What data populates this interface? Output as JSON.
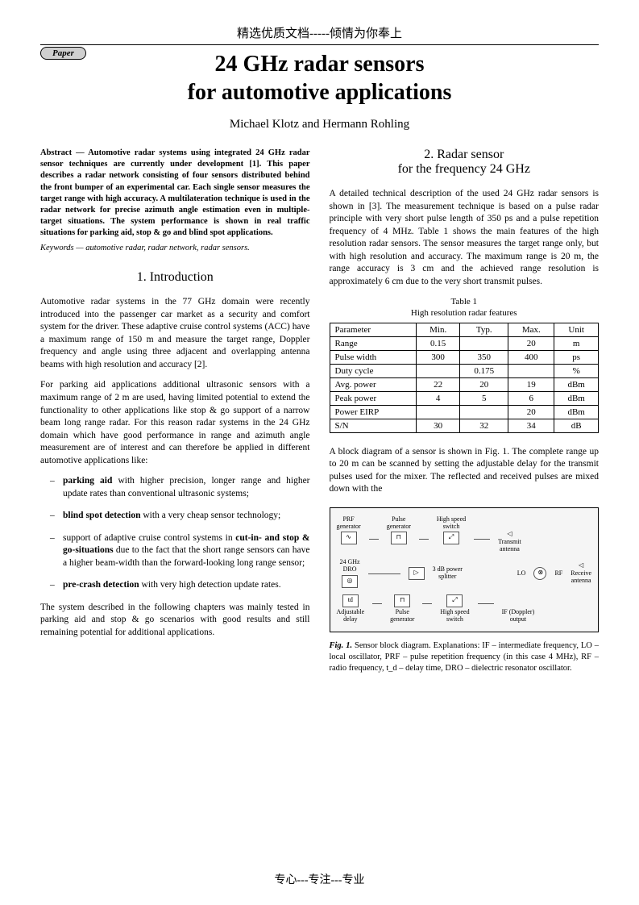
{
  "header_cn": "精选优质文档-----倾情为你奉上",
  "badge": "Paper",
  "title_line1": "24 GHz radar sensors",
  "title_line2": "for automotive applications",
  "authors": "Michael Klotz and Hermann Rohling",
  "abstract": "Abstract — Automotive radar systems using integrated 24 GHz radar sensor techniques are currently under development [1]. This paper describes a radar network consisting of four sensors distributed behind the front bumper of an experimental car. Each single sensor measures the target range with high accuracy. A multilateration technique is used in the radar network for precise azimuth angle estimation even in multiple-target situations. The system performance is shown in real traffic situations for parking aid, stop & go and blind spot applications.",
  "keywords": "Keywords — automotive radar, radar network, radar sensors.",
  "sec1_title": "1. Introduction",
  "sec1_p1": "Automotive radar systems in the 77 GHz domain were recently introduced into the passenger car market as a security and comfort system for the driver. These adaptive cruise control systems (ACC) have a maximum range of 150 m and measure the target range, Doppler frequency and angle using three adjacent and overlapping antenna beams with high resolution and accuracy [2].",
  "sec1_p2": "For parking aid applications additional ultrasonic sensors with a maximum range of 2 m are used, having limited potential to extend the functionality to other applications like stop & go support of a narrow beam long range radar. For this reason radar systems in the 24 GHz domain which have good performance in range and azimuth angle measurement are of interest and can therefore be applied in different automotive applications like:",
  "apps": {
    "a": {
      "b": "parking aid",
      "t": " with higher precision, longer range and higher update rates than conventional ultrasonic systems;"
    },
    "b": {
      "b": "blind spot detection",
      "t": " with a very cheap sensor technology;"
    },
    "c": {
      "pre": "support of adaptive cruise control systems in ",
      "b": "cut-in- and stop & go-situations",
      "t": " due to the fact that the short range sensors can have a higher beam-width than the forward-looking long range sensor;"
    },
    "d": {
      "b": "pre-crash detection",
      "t": " with very high detection update rates."
    }
  },
  "sec1_p3": "The system described in the following chapters was mainly tested in parking aid and stop & go scenarios with good results and still remaining potential for additional applications.",
  "sec2_title1": "2. Radar sensor",
  "sec2_title2": "for the frequency 24 GHz",
  "sec2_p1": "A detailed technical description of the used 24 GHz radar sensors is shown in [3]. The measurement technique is based on a pulse radar principle with very short pulse length of 350 ps and a pulse repetition frequency of 4 MHz. Table 1 shows the main features of the high resolution radar sensors. The sensor measures the target range only, but with high resolution and accuracy. The maximum range is 20 m, the range accuracy is  3 cm and the achieved range resolution is approximately 6 cm due to the very short transmit pulses.",
  "table_caption1": "Table 1",
  "table_caption2": "High resolution radar features",
  "table": {
    "columns": [
      "Parameter",
      "Min.",
      "Typ.",
      "Max.",
      "Unit"
    ],
    "rows": [
      [
        "Range",
        "0.15",
        "",
        "20",
        "m"
      ],
      [
        "Pulse width",
        "300",
        "350",
        "400",
        "ps"
      ],
      [
        "Duty cycle",
        "",
        "0.175",
        "",
        "%"
      ],
      [
        "Avg. power",
        "22",
        "20",
        "19",
        "dBm"
      ],
      [
        "Peak power",
        "4",
        "5",
        "6",
        "dBm"
      ],
      [
        "Power EIRP",
        "",
        "",
        "20",
        "dBm"
      ],
      [
        "S/N",
        "30",
        "32",
        "34",
        "dB"
      ]
    ],
    "col_widths": [
      "30%",
      "16%",
      "16%",
      "16%",
      "16%"
    ],
    "border_color": "#000000",
    "font_size_pt": 11
  },
  "sec2_p2": "A block diagram of a sensor is shown in Fig. 1. The complete range up to 20 m can be scanned by setting the adjustable delay for the transmit pulses used for the mixer. The reflected and received pulses are mixed down with the",
  "figure": {
    "prf_gen": "PRF\ngenerator",
    "pulse_gen": "Pulse\ngenerator",
    "hs_switch": "High speed\nswitch",
    "dro": "24 GHz\nDRO",
    "splitter": "3 dB power\nsplitter",
    "adj_delay": "Adjustable\ndelay",
    "if_out": "IF (Doppler)\noutput",
    "tx_ant": "Transmit\nantenna",
    "rx_ant": "Receive\nantenna",
    "lo": "LO",
    "rf": "RF",
    "td": "td",
    "background_color": "#f5f5f5",
    "border_color": "#000000"
  },
  "fig_caption_b": "Fig. 1.",
  "fig_caption": " Sensor block diagram. Explanations: IF – intermediate frequency, LO – local oscillator, PRF – pulse repetition frequency (in this case 4 MHz), RF – radio frequency, t_d – delay time, DRO – dielectric resonator oscillator.",
  "footer_cn": "专心---专注---专业"
}
